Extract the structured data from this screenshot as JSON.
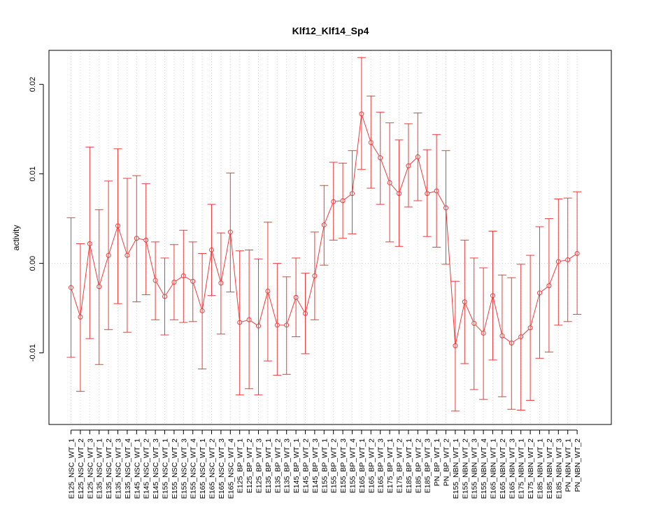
{
  "chart_data": {
    "type": "line",
    "title": "Klf12_Klf14_Sp4",
    "xlabel": "",
    "ylabel": "activity",
    "ylim": [
      -0.018,
      0.0238
    ],
    "yticks": [
      -0.01,
      0.0,
      0.01,
      0.02
    ],
    "ytick_labels": [
      "-0.01",
      "0.00",
      "0.01",
      "0.02"
    ],
    "grid": true,
    "reference_line": 0.0,
    "colors": {
      "series": "#ee3b3b",
      "grid": "#d3d3d3",
      "axis": "#000000"
    },
    "categories": [
      "E125_NSC_WT_1",
      "E125_NSC_WT_2",
      "E125_NSC_WT_3",
      "E135_NSC_WT_1",
      "E135_NSC_WT_2",
      "E135_NSC_WT_3",
      "E135_NSC_WT_4",
      "E145_NSC_WT_1",
      "E145_NSC_WT_2",
      "E145_NSC_WT_3",
      "E155_NSC_WT_1",
      "E155_NSC_WT_2",
      "E155_NSC_WT_3",
      "E155_NSC_WT_4",
      "E165_NSC_WT_1",
      "E165_NSC_WT_2",
      "E165_NSC_WT_3",
      "E165_NSC_WT_4",
      "E125_BP_WT_1",
      "E125_BP_WT_2",
      "E125_BP_WT_3",
      "E135_BP_WT_1",
      "E135_BP_WT_2",
      "E135_BP_WT_3",
      "E145_BP_WT_1",
      "E145_BP_WT_2",
      "E145_BP_WT_3",
      "E155_BP_WT_1",
      "E155_BP_WT_2",
      "E155_BP_WT_3",
      "E155_BP_WT_4",
      "E165_BP_WT_1",
      "E165_BP_WT_2",
      "E165_BP_WT_3",
      "E175_BP_WT_1",
      "E175_BP_WT_2",
      "E185_BP_WT_1",
      "E185_BP_WT_2",
      "E185_BP_WT_3",
      "PN_BP_WT_1",
      "PN_BP_WT_2",
      "E155_NBN_WT_1",
      "E155_NBN_WT_2",
      "E155_NBN_WT_3",
      "E155_NBN_WT_4",
      "E165_NBN_WT_1",
      "E165_NBN_WT_2",
      "E165_NBN_WT_3",
      "E175_NBN_WT_1",
      "E175_NBN_WT_2",
      "E185_NBN_WT_1",
      "E185_NBN_WT_2",
      "E185_NBN_WT_3",
      "PN_NBN_WT_1",
      "PN_NBN_WT_2"
    ],
    "series": [
      {
        "values": [
          -0.0027,
          -0.006,
          0.0022,
          -0.0026,
          0.0009,
          0.0042,
          0.0009,
          0.0028,
          0.0026,
          -0.0019,
          -0.0037,
          -0.0021,
          -0.0014,
          -0.002,
          -0.0053,
          0.0015,
          -0.0022,
          0.0035,
          -0.0066,
          -0.0063,
          -0.007,
          -0.0031,
          -0.0069,
          -0.0069,
          -0.0038,
          -0.0056,
          -0.0014,
          0.0043,
          0.0069,
          0.007,
          0.0078,
          0.0167,
          0.0135,
          0.0118,
          0.009,
          0.0078,
          0.0109,
          0.0119,
          0.0078,
          0.0081,
          0.0062,
          -0.0092,
          -0.0043,
          -0.0067,
          -0.0078,
          -0.0036,
          -0.0081,
          -0.0089,
          -0.0082,
          -0.0072,
          -0.0033,
          -0.0025,
          0.0002,
          0.0004,
          0.0011
        ],
        "upper": [
          0.0051,
          0.0022,
          0.013,
          0.006,
          0.0092,
          0.0128,
          0.0095,
          0.0098,
          0.0089,
          0.0024,
          0.0006,
          0.0021,
          0.0037,
          0.0024,
          0.0011,
          0.0066,
          0.0034,
          0.0101,
          0.0014,
          0.0015,
          0.0005,
          0.0046,
          0.0,
          -0.0015,
          0.0006,
          -0.0011,
          0.0035,
          0.0087,
          0.0113,
          0.0112,
          0.0126,
          0.023,
          0.0187,
          0.0169,
          0.0157,
          0.0138,
          0.0156,
          0.0168,
          0.0127,
          0.0144,
          0.0126,
          -0.002,
          0.0026,
          0.0006,
          -0.0005,
          0.0036,
          -0.0013,
          -0.0016,
          -0.0001,
          0.0009,
          0.0041,
          0.005,
          0.0072,
          0.0073,
          0.008
        ],
        "lower": [
          -0.0105,
          -0.0143,
          -0.0084,
          -0.0113,
          -0.0074,
          -0.0045,
          -0.0077,
          -0.0043,
          -0.0035,
          -0.0063,
          -0.008,
          -0.0063,
          -0.0066,
          -0.0065,
          -0.0118,
          -0.0036,
          -0.0079,
          -0.0032,
          -0.0147,
          -0.014,
          -0.0147,
          -0.0109,
          -0.0125,
          -0.0124,
          -0.0082,
          -0.0101,
          -0.0063,
          -0.0002,
          0.0026,
          0.0028,
          0.0033,
          0.0105,
          0.0084,
          0.0066,
          0.0024,
          0.0019,
          0.0063,
          0.007,
          0.003,
          0.0018,
          -0.0001,
          -0.0165,
          -0.0112,
          -0.0141,
          -0.0152,
          -0.0108,
          -0.0149,
          -0.0163,
          -0.0164,
          -0.0153,
          -0.0106,
          -0.0099,
          -0.0069,
          -0.0065,
          -0.0057
        ]
      }
    ]
  }
}
